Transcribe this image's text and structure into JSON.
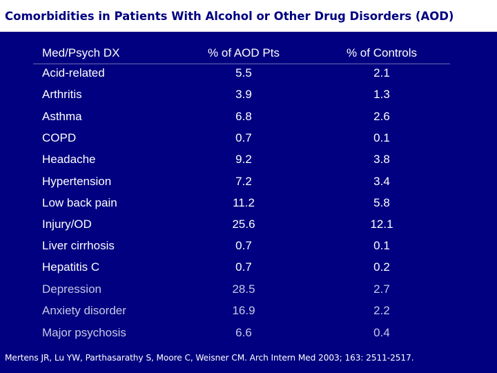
{
  "title": "Comorbidities in Patients With Alcohol or Other Drug Disorders (AOD)",
  "table": {
    "headers": [
      "Med/Psych DX",
      "% of AOD Pts",
      "% of Controls"
    ],
    "rows": [
      {
        "dx": "Acid-related",
        "aod": "5.5",
        "controls": "2.1",
        "group": "medical"
      },
      {
        "dx": "Arthritis",
        "aod": "3.9",
        "controls": "1.3",
        "group": "medical"
      },
      {
        "dx": "Asthma",
        "aod": "6.8",
        "controls": "2.6",
        "group": "medical"
      },
      {
        "dx": "COPD",
        "aod": "0.7",
        "controls": "0.1",
        "group": "medical"
      },
      {
        "dx": "Headache",
        "aod": "9.2",
        "controls": "3.8",
        "group": "medical"
      },
      {
        "dx": "Hypertension",
        "aod": "7.2",
        "controls": "3.4",
        "group": "medical"
      },
      {
        "dx": "Low back pain",
        "aod": "11.2",
        "controls": "5.8",
        "group": "medical"
      },
      {
        "dx": "Injury/OD",
        "aod": "25.6",
        "controls": "12.1",
        "group": "medical"
      },
      {
        "dx": "Liver cirrhosis",
        "aod": "0.7",
        "controls": "0.1",
        "group": "medical"
      },
      {
        "dx": "Hepatitis C",
        "aod": "0.7",
        "controls": "0.2",
        "group": "medical"
      },
      {
        "dx": "Depression",
        "aod": "28.5",
        "controls": "2.7",
        "group": "psych"
      },
      {
        "dx": "Anxiety disorder",
        "aod": "16.9",
        "controls": "2.2",
        "group": "psych"
      },
      {
        "dx": "Major psychosis",
        "aod": "6.6",
        "controls": "0.4",
        "group": "psych"
      }
    ]
  },
  "citation": "Mertens JR, Lu YW, Parthasarathy S, Moore C, Weisner CM. Arch Intern Med 2003; 163: 2511-2517.",
  "colors": {
    "background": "#000080",
    "title_bar": "#ffffff",
    "title_text": "#000080",
    "medical_text": "#ffffff",
    "psych_text": "#c8c8e6"
  }
}
